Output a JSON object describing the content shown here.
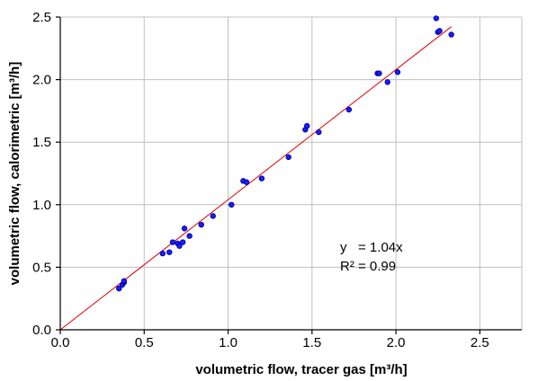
{
  "chart_data": {
    "type": "scatter",
    "title": "",
    "xlabel": "volumetric flow, tracer gas [m³/h]",
    "ylabel": "volumetric flow, calorimetric [m³/h]",
    "xlim": [
      0,
      2.75
    ],
    "ylim": [
      0,
      2.5
    ],
    "xticks": [
      0,
      0.5,
      1.0,
      1.5,
      2.0,
      2.5
    ],
    "yticks": [
      0,
      0.5,
      1.0,
      1.5,
      2.0,
      2.5
    ],
    "xtick_labels": [
      "0.0",
      "0.5",
      "1.0",
      "1.5",
      "2.0",
      "2.5"
    ],
    "ytick_labels": [
      "0.0",
      "0.5",
      "1.0",
      "1.5",
      "2.0",
      "2.5"
    ],
    "grid": true,
    "legend": "none",
    "marker_color": "#1a1aff",
    "trendline": {
      "slope": 1.04,
      "x_range": [
        0,
        2.33
      ],
      "color": "#e00000"
    },
    "annotation": {
      "line1": "y   = 1.04x",
      "line2": "R² = 0.99"
    },
    "series": [
      {
        "x": [
          0.35,
          0.37,
          0.38,
          0.38,
          0.61,
          0.65,
          0.67,
          0.7,
          0.71,
          0.73,
          0.74,
          0.77,
          0.84,
          0.91,
          1.02,
          1.09,
          1.11,
          1.2,
          1.36,
          1.46,
          1.47,
          1.54,
          1.72,
          1.89,
          1.9,
          1.95,
          2.01,
          2.24,
          2.25,
          2.26,
          2.33
        ],
        "y": [
          0.33,
          0.36,
          0.38,
          0.39,
          0.61,
          0.62,
          0.7,
          0.69,
          0.67,
          0.7,
          0.81,
          0.75,
          0.84,
          0.91,
          1.0,
          1.19,
          1.18,
          1.21,
          1.38,
          1.6,
          1.63,
          1.58,
          1.76,
          2.05,
          2.05,
          1.98,
          2.06,
          2.49,
          2.38,
          2.39,
          2.36
        ]
      }
    ]
  }
}
